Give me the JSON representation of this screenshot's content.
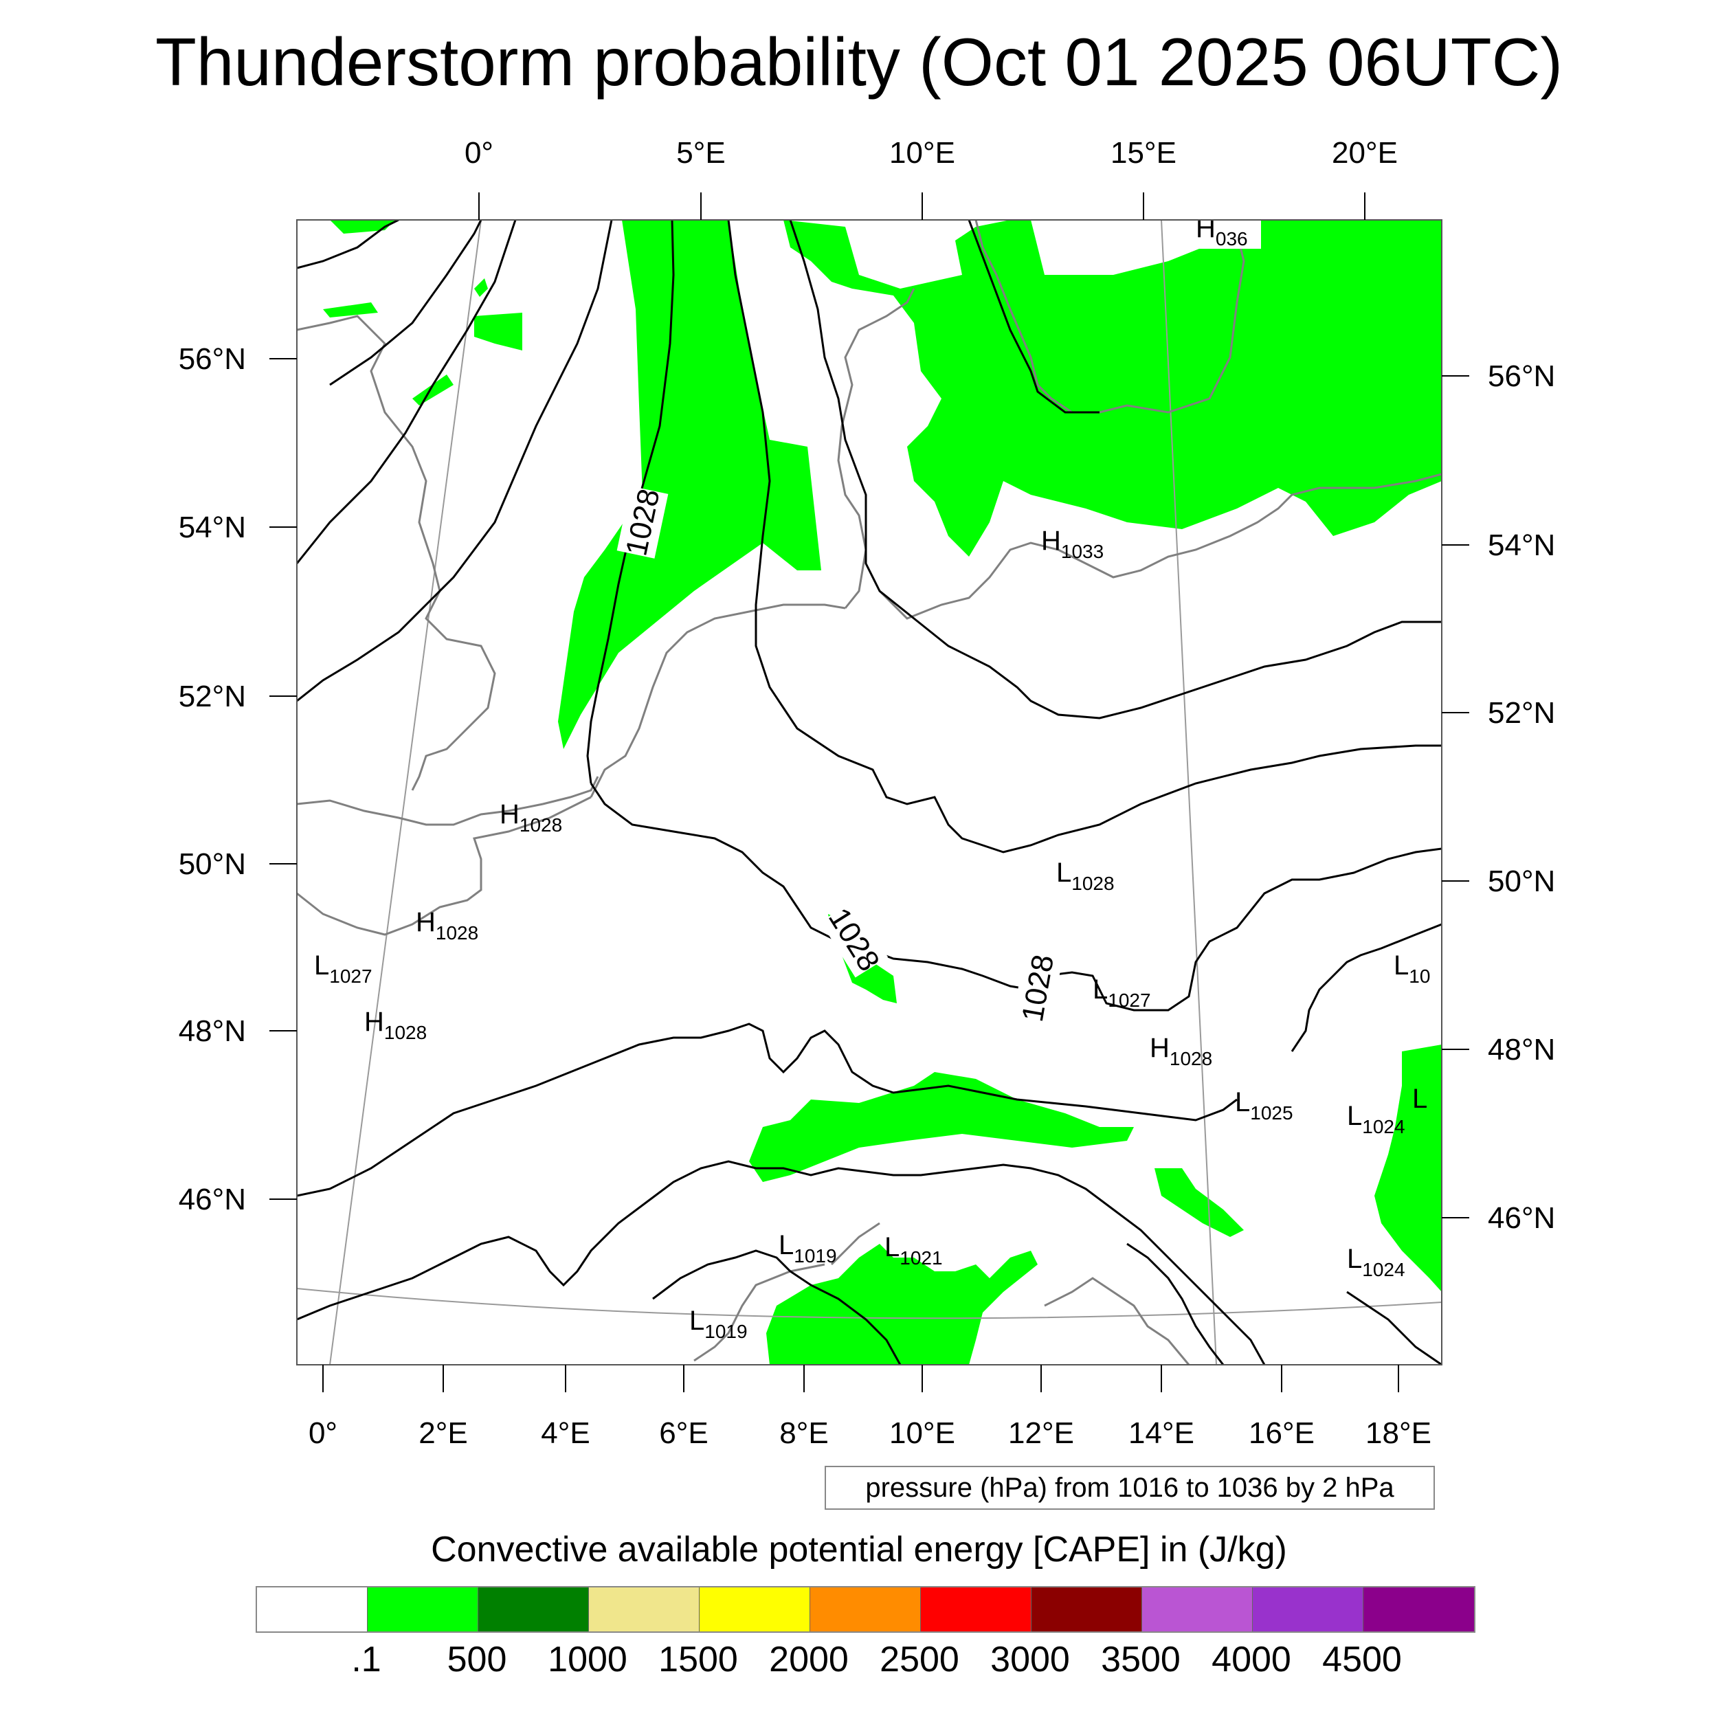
{
  "title": "Thunderstorm probability (Oct 01 2025 06UTC)",
  "top_lon_labels": [
    "0°",
    "5°E",
    "10°E",
    "15°E",
    "20°E"
  ],
  "bottom_lon_labels": [
    "0°",
    "2°E",
    "4°E",
    "6°E",
    "8°E",
    "10°E",
    "12°E",
    "14°E",
    "16°E",
    "18°E"
  ],
  "left_lat_labels": [
    "56°N",
    "54°N",
    "52°N",
    "50°N",
    "48°N",
    "46°N"
  ],
  "right_lat_labels": [
    "56°N",
    "54°N",
    "52°N",
    "50°N",
    "48°N",
    "46°N"
  ],
  "isobar_labels": [
    "1028",
    "1028",
    "1028"
  ],
  "pressure_centers": [
    {
      "letter": "H",
      "value": "036"
    },
    {
      "letter": "H",
      "value": "1033"
    },
    {
      "letter": "H",
      "value": "1028"
    },
    {
      "letter": "H",
      "value": "1028"
    },
    {
      "letter": "H",
      "value": "1028"
    },
    {
      "letter": "H",
      "value": "1028"
    },
    {
      "letter": "L",
      "value": "1027"
    },
    {
      "letter": "L",
      "value": "1028"
    },
    {
      "letter": "L",
      "value": "1027"
    },
    {
      "letter": "L",
      "value": "1025"
    },
    {
      "letter": "L",
      "value": "1024"
    },
    {
      "letter": "L",
      "value": "1024"
    },
    {
      "letter": "L",
      "value": "10"
    },
    {
      "letter": "L",
      "value": ""
    },
    {
      "letter": "L",
      "value": "1019"
    },
    {
      "letter": "L",
      "value": "1021"
    },
    {
      "letter": "L",
      "value": "1019"
    }
  ],
  "contour_info": "pressure (hPa) from 1016 to 1036 by 2 hPa",
  "colorbar": {
    "title": "Convective available potential energy [CAPE] in (J/kg)",
    "labels": [
      ".1",
      "500",
      "1000",
      "1500",
      "2000",
      "2500",
      "3000",
      "3500",
      "4000",
      "4500"
    ],
    "colors": [
      "#ffffff",
      "#00ff00",
      "#008000",
      "#f0e68c",
      "#ffff00",
      "#ff8c00",
      "#ff0000",
      "#8b0000",
      "#ba55d3",
      "#9932cc",
      "#8b008b"
    ]
  },
  "colors": {
    "cape_fill": "#00ff00",
    "isobar": "#000000",
    "coastline": "#808080",
    "graticule": "#999999"
  }
}
